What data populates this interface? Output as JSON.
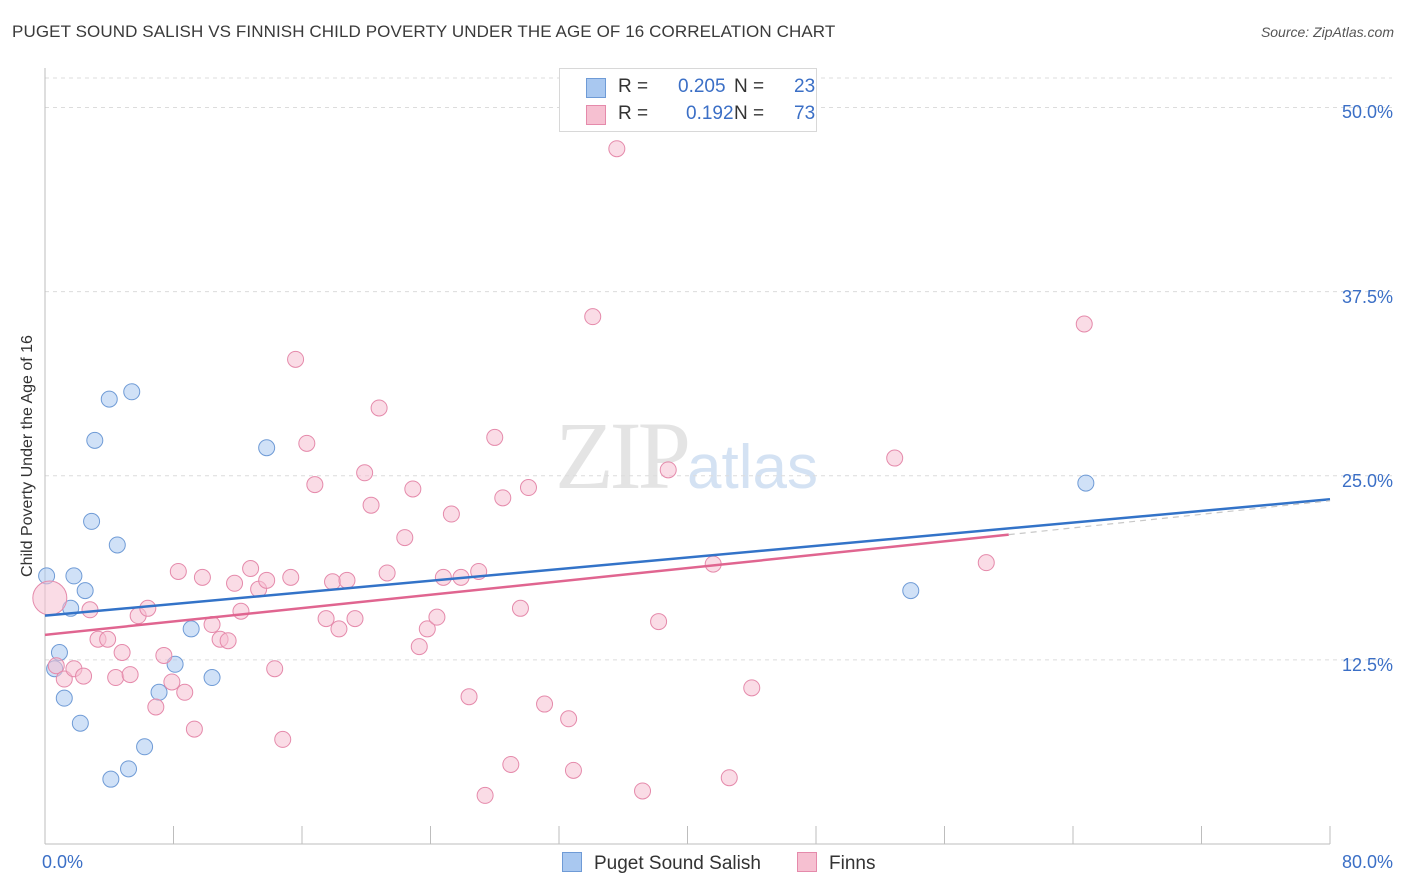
{
  "chart_data": {
    "type": "scatter",
    "title": "PUGET SOUND SALISH VS FINNISH CHILD POVERTY UNDER THE AGE OF 16 CORRELATION CHART",
    "source": "Source: ZipAtlas.com",
    "xlabel": "",
    "ylabel": "Child Poverty Under the Age of 16",
    "xlim": [
      0,
      80
    ],
    "ylim": [
      0,
      52
    ],
    "x_tick_labels": [
      "0.0%",
      "80.0%"
    ],
    "y_ticks": [
      12.5,
      25.0,
      37.5,
      50.0
    ],
    "y_tick_labels": [
      "12.5%",
      "25.0%",
      "37.5%",
      "50.0%"
    ],
    "grid": true,
    "legend_placement": "top-center",
    "watermark": "ZIPatlas",
    "series": [
      {
        "name": "Puget Sound Salish",
        "color": "#a9c8f0",
        "stroke": "#6f9bd6",
        "line_color": "#3373c8",
        "R": "0.205",
        "N": "23",
        "trend": [
          [
            0,
            15.5
          ],
          [
            80,
            23.4
          ]
        ],
        "points": [
          [
            0.1,
            18.2
          ],
          [
            0.6,
            11.9
          ],
          [
            0.9,
            13.0
          ],
          [
            1.2,
            9.9
          ],
          [
            1.6,
            16.0
          ],
          [
            1.8,
            18.2
          ],
          [
            2.2,
            8.2
          ],
          [
            2.5,
            17.2
          ],
          [
            2.9,
            21.9
          ],
          [
            3.1,
            27.4
          ],
          [
            4.0,
            30.2
          ],
          [
            4.1,
            4.4
          ],
          [
            4.5,
            20.3
          ],
          [
            5.2,
            5.1
          ],
          [
            5.4,
            30.7
          ],
          [
            6.2,
            6.6
          ],
          [
            7.1,
            10.3
          ],
          [
            8.1,
            12.2
          ],
          [
            9.1,
            14.6
          ],
          [
            10.4,
            11.3
          ],
          [
            13.8,
            26.9
          ],
          [
            53.9,
            17.2
          ],
          [
            64.8,
            24.5
          ]
        ]
      },
      {
        "name": "Finns",
        "color": "#f6c0d1",
        "stroke": "#e58aab",
        "line_color": "#e06590",
        "R": "0.192",
        "N": "73",
        "trend": [
          [
            0,
            14.2
          ],
          [
            60,
            21.0
          ]
        ],
        "trend_dash_to": [
          80,
          23.3
        ],
        "points": [
          [
            0.3,
            16.7
          ],
          [
            0.7,
            12.1
          ],
          [
            1.2,
            11.2
          ],
          [
            1.8,
            11.9
          ],
          [
            2.4,
            11.4
          ],
          [
            2.8,
            15.9
          ],
          [
            3.3,
            13.9
          ],
          [
            3.9,
            13.9
          ],
          [
            4.4,
            11.3
          ],
          [
            4.8,
            13.0
          ],
          [
            5.3,
            11.5
          ],
          [
            5.8,
            15.5
          ],
          [
            6.4,
            16.0
          ],
          [
            6.9,
            9.3
          ],
          [
            7.4,
            12.8
          ],
          [
            7.9,
            11.0
          ],
          [
            8.3,
            18.5
          ],
          [
            8.7,
            10.3
          ],
          [
            9.3,
            7.8
          ],
          [
            9.8,
            18.1
          ],
          [
            10.4,
            14.9
          ],
          [
            10.9,
            13.9
          ],
          [
            11.4,
            13.8
          ],
          [
            11.8,
            17.7
          ],
          [
            12.2,
            15.8
          ],
          [
            12.8,
            18.7
          ],
          [
            13.3,
            17.3
          ],
          [
            13.8,
            17.9
          ],
          [
            14.3,
            11.9
          ],
          [
            14.8,
            7.1
          ],
          [
            15.3,
            18.1
          ],
          [
            15.6,
            32.9
          ],
          [
            16.3,
            27.2
          ],
          [
            16.8,
            24.4
          ],
          [
            17.5,
            15.3
          ],
          [
            17.9,
            17.8
          ],
          [
            18.3,
            14.6
          ],
          [
            18.8,
            17.9
          ],
          [
            19.3,
            15.3
          ],
          [
            19.9,
            25.2
          ],
          [
            20.3,
            23.0
          ],
          [
            20.8,
            29.6
          ],
          [
            21.3,
            18.4
          ],
          [
            22.4,
            20.8
          ],
          [
            22.9,
            24.1
          ],
          [
            23.3,
            13.4
          ],
          [
            23.8,
            14.6
          ],
          [
            24.4,
            15.4
          ],
          [
            24.8,
            18.1
          ],
          [
            25.3,
            22.4
          ],
          [
            25.9,
            18.1
          ],
          [
            26.4,
            10.0
          ],
          [
            27.0,
            18.5
          ],
          [
            27.4,
            3.3
          ],
          [
            28.0,
            27.6
          ],
          [
            28.5,
            23.5
          ],
          [
            29.0,
            5.4
          ],
          [
            29.6,
            16.0
          ],
          [
            30.1,
            24.2
          ],
          [
            31.1,
            9.5
          ],
          [
            32.6,
            8.5
          ],
          [
            32.9,
            5.0
          ],
          [
            34.1,
            35.8
          ],
          [
            35.6,
            47.2
          ],
          [
            37.2,
            3.6
          ],
          [
            38.2,
            15.1
          ],
          [
            38.8,
            25.4
          ],
          [
            41.6,
            19.0
          ],
          [
            42.6,
            4.5
          ],
          [
            44.0,
            10.6
          ],
          [
            52.9,
            26.2
          ],
          [
            58.6,
            19.1
          ],
          [
            64.7,
            35.3
          ]
        ]
      }
    ]
  }
}
